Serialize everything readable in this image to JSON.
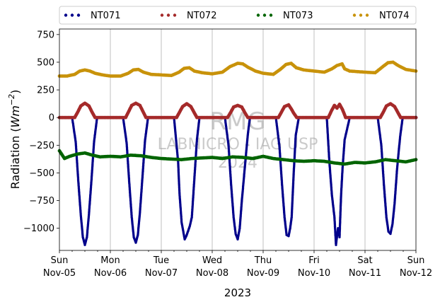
{
  "chart_data": {
    "type": "scatter",
    "title": "",
    "xlabel": "2023",
    "ylabel_prefix": "Radiation (",
    "ylabel_unit_base": "Wm",
    "ylabel_unit_exp": "−2",
    "ylabel_suffix": ")",
    "ylim": [
      -1200,
      800
    ],
    "yticks": [
      750,
      500,
      250,
      0,
      -250,
      -500,
      -750,
      -1000
    ],
    "ytick_labels": [
      "750",
      "500",
      "250",
      "0",
      "−250",
      "−500",
      "−750",
      "−1000"
    ],
    "xlim_days": [
      0,
      7
    ],
    "xticks": [
      {
        "day": 0,
        "weekday": "Sun",
        "date": "Nov-05"
      },
      {
        "day": 1,
        "weekday": "Mon",
        "date": "Nov-06"
      },
      {
        "day": 2,
        "weekday": "Tue",
        "date": "Nov-07"
      },
      {
        "day": 3,
        "weekday": "Wed",
        "date": "Nov-08"
      },
      {
        "day": 4,
        "weekday": "Thu",
        "date": "Nov-09"
      },
      {
        "day": 5,
        "weekday": "Fri",
        "date": "Nov-10"
      },
      {
        "day": 6,
        "weekday": "Sat",
        "date": "Nov-11"
      },
      {
        "day": 7,
        "weekday": "Sun",
        "date": "Nov-12"
      }
    ],
    "grid": "vertical",
    "legend_position": "top",
    "watermark": {
      "line1": "RMG",
      "line2": "LABMICRO - IAG USP",
      "line3": "2024"
    },
    "series": [
      {
        "name": "NT071",
        "color": "#00008b",
        "values": [
          [
            0.0,
            0
          ],
          [
            0.25,
            0
          ],
          [
            0.32,
            -220
          ],
          [
            0.37,
            -570
          ],
          [
            0.42,
            -880
          ],
          [
            0.46,
            -1080
          ],
          [
            0.5,
            -1150
          ],
          [
            0.54,
            -1080
          ],
          [
            0.58,
            -870
          ],
          [
            0.63,
            -560
          ],
          [
            0.68,
            -220
          ],
          [
            0.74,
            0
          ],
          [
            1.0,
            0
          ],
          [
            1.25,
            0
          ],
          [
            1.32,
            -230
          ],
          [
            1.37,
            -580
          ],
          [
            1.42,
            -900
          ],
          [
            1.46,
            -1080
          ],
          [
            1.5,
            -1130
          ],
          [
            1.54,
            -1060
          ],
          [
            1.58,
            -860
          ],
          [
            1.63,
            -540
          ],
          [
            1.68,
            -210
          ],
          [
            1.74,
            0
          ],
          [
            2.0,
            0
          ],
          [
            2.25,
            0
          ],
          [
            2.33,
            -400
          ],
          [
            2.36,
            -700
          ],
          [
            2.4,
            -950
          ],
          [
            2.46,
            -1100
          ],
          [
            2.5,
            -1060
          ],
          [
            2.56,
            -980
          ],
          [
            2.6,
            -900
          ],
          [
            2.65,
            -550
          ],
          [
            2.7,
            -200
          ],
          [
            2.75,
            0
          ],
          [
            3.0,
            0
          ],
          [
            3.25,
            0
          ],
          [
            3.32,
            -250
          ],
          [
            3.37,
            -600
          ],
          [
            3.42,
            -900
          ],
          [
            3.46,
            -1050
          ],
          [
            3.5,
            -1100
          ],
          [
            3.54,
            -1000
          ],
          [
            3.58,
            -760
          ],
          [
            3.64,
            -450
          ],
          [
            3.7,
            -150
          ],
          [
            3.74,
            0
          ],
          [
            4.0,
            0
          ],
          [
            4.25,
            0
          ],
          [
            4.32,
            -260
          ],
          [
            4.37,
            -600
          ],
          [
            4.42,
            -900
          ],
          [
            4.46,
            -1060
          ],
          [
            4.5,
            -1070
          ],
          [
            4.53,
            -1000
          ],
          [
            4.56,
            -900
          ],
          [
            4.6,
            -500
          ],
          [
            4.64,
            -160
          ],
          [
            4.7,
            0
          ],
          [
            5.0,
            0
          ],
          [
            5.25,
            0
          ],
          [
            5.3,
            -400
          ],
          [
            5.35,
            -700
          ],
          [
            5.4,
            -900
          ],
          [
            5.43,
            -1150
          ],
          [
            5.47,
            -1000
          ],
          [
            5.5,
            -1080
          ],
          [
            5.53,
            -700
          ],
          [
            5.56,
            -450
          ],
          [
            5.6,
            -200
          ],
          [
            5.7,
            0
          ],
          [
            6.0,
            0
          ],
          [
            6.25,
            0
          ],
          [
            6.32,
            -250
          ],
          [
            6.37,
            -600
          ],
          [
            6.42,
            -900
          ],
          [
            6.46,
            -1030
          ],
          [
            6.5,
            -1050
          ],
          [
            6.54,
            -960
          ],
          [
            6.58,
            -780
          ],
          [
            6.63,
            -460
          ],
          [
            6.69,
            -170
          ],
          [
            6.74,
            0
          ],
          [
            7.0,
            0
          ]
        ]
      },
      {
        "name": "NT072",
        "color": "#a52a2a",
        "values": [
          [
            0.0,
            0
          ],
          [
            0.3,
            0
          ],
          [
            0.36,
            50
          ],
          [
            0.42,
            105
          ],
          [
            0.5,
            130
          ],
          [
            0.58,
            105
          ],
          [
            0.64,
            50
          ],
          [
            0.7,
            0
          ],
          [
            1.0,
            0
          ],
          [
            1.3,
            0
          ],
          [
            1.36,
            55
          ],
          [
            1.42,
            110
          ],
          [
            1.5,
            130
          ],
          [
            1.58,
            110
          ],
          [
            1.64,
            55
          ],
          [
            1.7,
            0
          ],
          [
            2.0,
            0
          ],
          [
            2.3,
            0
          ],
          [
            2.36,
            50
          ],
          [
            2.42,
            100
          ],
          [
            2.5,
            125
          ],
          [
            2.58,
            100
          ],
          [
            2.64,
            50
          ],
          [
            2.7,
            0
          ],
          [
            3.0,
            0
          ],
          [
            3.3,
            0
          ],
          [
            3.36,
            45
          ],
          [
            3.42,
            95
          ],
          [
            3.5,
            110
          ],
          [
            3.58,
            95
          ],
          [
            3.64,
            45
          ],
          [
            3.7,
            0
          ],
          [
            4.0,
            0
          ],
          [
            4.3,
            0
          ],
          [
            4.36,
            50
          ],
          [
            4.42,
            100
          ],
          [
            4.5,
            115
          ],
          [
            4.55,
            80
          ],
          [
            4.6,
            40
          ],
          [
            4.66,
            0
          ],
          [
            5.0,
            0
          ],
          [
            5.28,
            0
          ],
          [
            5.34,
            60
          ],
          [
            5.4,
            110
          ],
          [
            5.45,
            85
          ],
          [
            5.5,
            120
          ],
          [
            5.56,
            70
          ],
          [
            5.62,
            0
          ],
          [
            6.0,
            0
          ],
          [
            6.3,
            0
          ],
          [
            6.36,
            50
          ],
          [
            6.42,
            105
          ],
          [
            6.5,
            125
          ],
          [
            6.58,
            100
          ],
          [
            6.64,
            50
          ],
          [
            6.7,
            0
          ],
          [
            7.0,
            0
          ]
        ]
      },
      {
        "name": "NT073",
        "color": "#006400",
        "values": [
          [
            0.0,
            -300
          ],
          [
            0.1,
            -370
          ],
          [
            0.2,
            -350
          ],
          [
            0.35,
            -330
          ],
          [
            0.5,
            -320
          ],
          [
            0.65,
            -340
          ],
          [
            0.8,
            -355
          ],
          [
            1.0,
            -350
          ],
          [
            1.2,
            -355
          ],
          [
            1.4,
            -340
          ],
          [
            1.6,
            -345
          ],
          [
            1.8,
            -360
          ],
          [
            2.0,
            -370
          ],
          [
            2.2,
            -375
          ],
          [
            2.4,
            -380
          ],
          [
            2.6,
            -370
          ],
          [
            2.8,
            -365
          ],
          [
            3.0,
            -360
          ],
          [
            3.2,
            -370
          ],
          [
            3.4,
            -355
          ],
          [
            3.6,
            -360
          ],
          [
            3.8,
            -370
          ],
          [
            4.0,
            -350
          ],
          [
            4.2,
            -370
          ],
          [
            4.4,
            -380
          ],
          [
            4.6,
            -390
          ],
          [
            4.8,
            -395
          ],
          [
            5.0,
            -390
          ],
          [
            5.2,
            -395
          ],
          [
            5.4,
            -410
          ],
          [
            5.6,
            -420
          ],
          [
            5.8,
            -405
          ],
          [
            6.0,
            -410
          ],
          [
            6.2,
            -400
          ],
          [
            6.4,
            -380
          ],
          [
            6.6,
            -390
          ],
          [
            6.8,
            -400
          ],
          [
            7.0,
            -380
          ]
        ]
      },
      {
        "name": "NT074",
        "color": "#c8920a",
        "values": [
          [
            0.0,
            375
          ],
          [
            0.15,
            375
          ],
          [
            0.3,
            390
          ],
          [
            0.4,
            420
          ],
          [
            0.5,
            430
          ],
          [
            0.6,
            420
          ],
          [
            0.7,
            400
          ],
          [
            0.85,
            385
          ],
          [
            1.0,
            375
          ],
          [
            1.2,
            375
          ],
          [
            1.35,
            400
          ],
          [
            1.45,
            430
          ],
          [
            1.55,
            435
          ],
          [
            1.65,
            410
          ],
          [
            1.8,
            390
          ],
          [
            2.0,
            385
          ],
          [
            2.2,
            380
          ],
          [
            2.35,
            410
          ],
          [
            2.45,
            445
          ],
          [
            2.55,
            450
          ],
          [
            2.65,
            420
          ],
          [
            2.8,
            405
          ],
          [
            3.0,
            395
          ],
          [
            3.2,
            410
          ],
          [
            3.35,
            460
          ],
          [
            3.5,
            490
          ],
          [
            3.6,
            485
          ],
          [
            3.7,
            455
          ],
          [
            3.85,
            420
          ],
          [
            4.0,
            400
          ],
          [
            4.2,
            390
          ],
          [
            4.35,
            440
          ],
          [
            4.45,
            480
          ],
          [
            4.55,
            490
          ],
          [
            4.65,
            450
          ],
          [
            4.8,
            430
          ],
          [
            5.0,
            420
          ],
          [
            5.2,
            410
          ],
          [
            5.35,
            440
          ],
          [
            5.45,
            470
          ],
          [
            5.55,
            485
          ],
          [
            5.6,
            440
          ],
          [
            5.7,
            420
          ],
          [
            6.0,
            410
          ],
          [
            6.2,
            405
          ],
          [
            6.35,
            460
          ],
          [
            6.45,
            495
          ],
          [
            6.55,
            500
          ],
          [
            6.65,
            470
          ],
          [
            6.8,
            435
          ],
          [
            7.0,
            420
          ]
        ]
      }
    ]
  }
}
